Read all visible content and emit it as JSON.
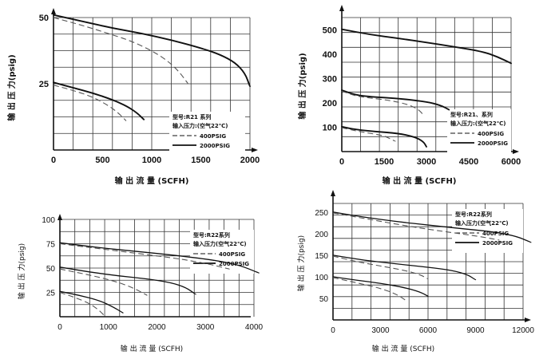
{
  "chart_data": [
    {
      "type": "line",
      "xlabel": "输 出 流 量 (SCFH)",
      "ylabel": "输 出 压 力(psig)",
      "xlim": [
        0,
        2000
      ],
      "ylim": [
        0,
        50
      ],
      "xticks": [
        0,
        500,
        1000,
        1500,
        2000
      ],
      "yticks": [
        25,
        50
      ],
      "grid": true,
      "legend": {
        "position": "right-middle",
        "model": "型号:R21 系列",
        "inlet": "输入压力:(空气22℃)",
        "entries": [
          "400PSIG",
          "2000PSIG"
        ]
      },
      "series": [
        {
          "name": "2000PSIG",
          "supply": 50,
          "style": "solid",
          "x": [
            0,
            300,
            600,
            900,
            1200,
            1500,
            1700,
            1850,
            1950,
            2000
          ],
          "y": [
            51,
            48.5,
            46,
            44,
            41.5,
            38.5,
            36,
            33,
            29,
            24
          ]
        },
        {
          "name": "400PSIG",
          "supply": 50,
          "style": "dashed",
          "x": [
            0,
            300,
            600,
            800,
            1000,
            1150,
            1270,
            1370
          ],
          "y": [
            50,
            47,
            43.5,
            41,
            37.5,
            34,
            30,
            25
          ]
        },
        {
          "name": "2000PSIG",
          "supply": 25,
          "style": "solid",
          "x": [
            0,
            200,
            400,
            600,
            750,
            850,
            920
          ],
          "y": [
            25.5,
            23.5,
            21.5,
            19,
            16.5,
            14,
            11.5
          ]
        },
        {
          "name": "400PSIG",
          "supply": 25,
          "style": "dashed",
          "x": [
            0,
            200,
            400,
            550,
            660,
            740
          ],
          "y": [
            24.5,
            22.5,
            20,
            17,
            14,
            11
          ]
        }
      ]
    },
    {
      "type": "line",
      "xlabel": "输 出 流 量 (SCFH)",
      "ylabel": "输 出 压 力(psig)",
      "xlim": [
        0,
        6000
      ],
      "ylim": [
        0,
        550
      ],
      "xticks": [
        0,
        1500,
        3000,
        4500,
        6000
      ],
      "yticks": [
        100,
        200,
        300,
        400,
        500
      ],
      "grid": true,
      "legend": {
        "position": "right-lower",
        "model": "型号:R21、系列",
        "inlet": "输入压力:(空气22℃)",
        "entries": [
          "400PSIG",
          "2000PSIG"
        ]
      },
      "series": [
        {
          "name": "2000PSIG",
          "supply": 500,
          "style": "solid",
          "x": [
            0,
            1000,
            2000,
            3000,
            4000,
            5000,
            5500,
            6000
          ],
          "y": [
            502,
            480,
            465,
            448,
            430,
            410,
            390,
            362
          ]
        },
        {
          "name": "2000PSIG",
          "supply": 250,
          "style": "solid",
          "x": [
            0,
            500,
            1000,
            2000,
            3000,
            3500,
            3800
          ],
          "y": [
            252,
            232,
            225,
            218,
            205,
            190,
            172
          ]
        },
        {
          "name": "400PSIG",
          "supply": 250,
          "style": "dashed",
          "x": [
            0,
            500,
            1000,
            1700,
            2300,
            2700,
            2900
          ],
          "y": [
            248,
            228,
            220,
            210,
            195,
            175,
            150
          ]
        },
        {
          "name": "2000PSIG",
          "supply": 100,
          "style": "solid",
          "x": [
            0,
            500,
            1200,
            2000,
            2600,
            2900,
            3000
          ],
          "y": [
            102,
            90,
            82,
            75,
            60,
            40,
            20
          ]
        },
        {
          "name": "400PSIG",
          "supply": 100,
          "style": "dashed",
          "x": [
            0,
            500,
            1000,
            1500,
            1750,
            1900
          ],
          "y": [
            98,
            85,
            75,
            65,
            50,
            42
          ]
        }
      ]
    },
    {
      "type": "line",
      "xlabel": "输 出 流 量 (SCFH)",
      "ylabel": "输 出 压 力(psig)",
      "xlim": [
        0,
        4000
      ],
      "ylim": [
        0,
        100
      ],
      "xticks": [
        0,
        1000,
        2000,
        3000,
        4000
      ],
      "yticks": [
        25,
        50,
        75,
        100
      ],
      "grid": true,
      "legend": {
        "position": "top-right",
        "model": "型号:R22系列",
        "inlet": "输入压力(空气22℃)",
        "entries": [
          "400PSIG",
          "2000PSIG"
        ]
      },
      "series": [
        {
          "name": "2000PSIG",
          "supply": 75,
          "style": "solid",
          "x": [
            0,
            800,
            1600,
            2400,
            3200,
            3700,
            4100
          ],
          "y": [
            76,
            71,
            67,
            63,
            58,
            53,
            45
          ]
        },
        {
          "name": "400PSIG",
          "supply": 75,
          "style": "dashed",
          "x": [
            0,
            800,
            1600,
            2400,
            3000,
            3500
          ],
          "y": [
            75,
            70,
            65,
            60,
            55,
            49
          ]
        },
        {
          "name": "2000PSIG",
          "supply": 50,
          "style": "solid",
          "x": [
            0,
            600,
            1200,
            1800,
            2300,
            2600,
            2800
          ],
          "y": [
            51,
            46,
            42,
            39,
            35,
            30,
            23
          ]
        },
        {
          "name": "400PSIG",
          "supply": 50,
          "style": "dashed",
          "x": [
            0,
            600,
            1100,
            1500,
            1800
          ],
          "y": [
            49,
            43,
            37,
            30,
            22
          ]
        },
        {
          "name": "2000PSIG",
          "supply": 25,
          "style": "solid",
          "x": [
            0,
            400,
            800,
            1100,
            1300
          ],
          "y": [
            26,
            22,
            17,
            10,
            4
          ]
        },
        {
          "name": "400PSIG",
          "supply": 25,
          "style": "dashed",
          "x": [
            0,
            300,
            600,
            800,
            900
          ],
          "y": [
            25,
            20,
            14,
            7,
            2
          ]
        }
      ]
    },
    {
      "type": "line",
      "xlabel": "输 出 流 量 (SCFH)",
      "ylabel": "输 出 压 力(psig)",
      "xlim": [
        0,
        12000
      ],
      "ylim": [
        0,
        270
      ],
      "xticks": [
        0,
        3000,
        6000,
        9000,
        12000
      ],
      "yticks": [
        50,
        100,
        150,
        200,
        250
      ],
      "grid": true,
      "legend": {
        "position": "top-right",
        "model": "型号:R22系列",
        "inlet": "输入压力(空气22℃)",
        "entries": [
          "400PSIG",
          "2000PSIG"
        ]
      },
      "series": [
        {
          "name": "2000PSIG",
          "supply": 250,
          "style": "solid",
          "x": [
            0,
            2000,
            4000,
            6000,
            8000,
            10000,
            11500,
            12500
          ],
          "y": [
            250,
            238,
            228,
            220,
            212,
            205,
            195,
            180
          ]
        },
        {
          "name": "400PSIG",
          "supply": 250,
          "style": "dashed",
          "x": [
            0,
            2000,
            4000,
            6000,
            8000,
            9500,
            10500
          ],
          "y": [
            248,
            235,
            222,
            210,
            200,
            192,
            185
          ]
        },
        {
          "name": "2000PSIG",
          "supply": 150,
          "style": "solid",
          "x": [
            0,
            2000,
            4000,
            6000,
            7500,
            8500,
            9000
          ],
          "y": [
            150,
            138,
            130,
            122,
            115,
            105,
            93
          ]
        },
        {
          "name": "400PSIG",
          "supply": 150,
          "style": "dashed",
          "x": [
            0,
            1500,
            3000,
            4500,
            5500,
            6000
          ],
          "y": [
            148,
            135,
            125,
            115,
            105,
            95
          ]
        },
        {
          "name": "2000PSIG",
          "supply": 100,
          "style": "solid",
          "x": [
            0,
            1500,
            3000,
            4500,
            5500,
            6000
          ],
          "y": [
            100,
            92,
            85,
            75,
            65,
            55
          ]
        },
        {
          "name": "400PSIG",
          "supply": 100,
          "style": "dashed",
          "x": [
            0,
            1000,
            2000,
            3000,
            4000,
            4600
          ],
          "y": [
            98,
            90,
            82,
            73,
            60,
            45
          ]
        }
      ]
    }
  ]
}
